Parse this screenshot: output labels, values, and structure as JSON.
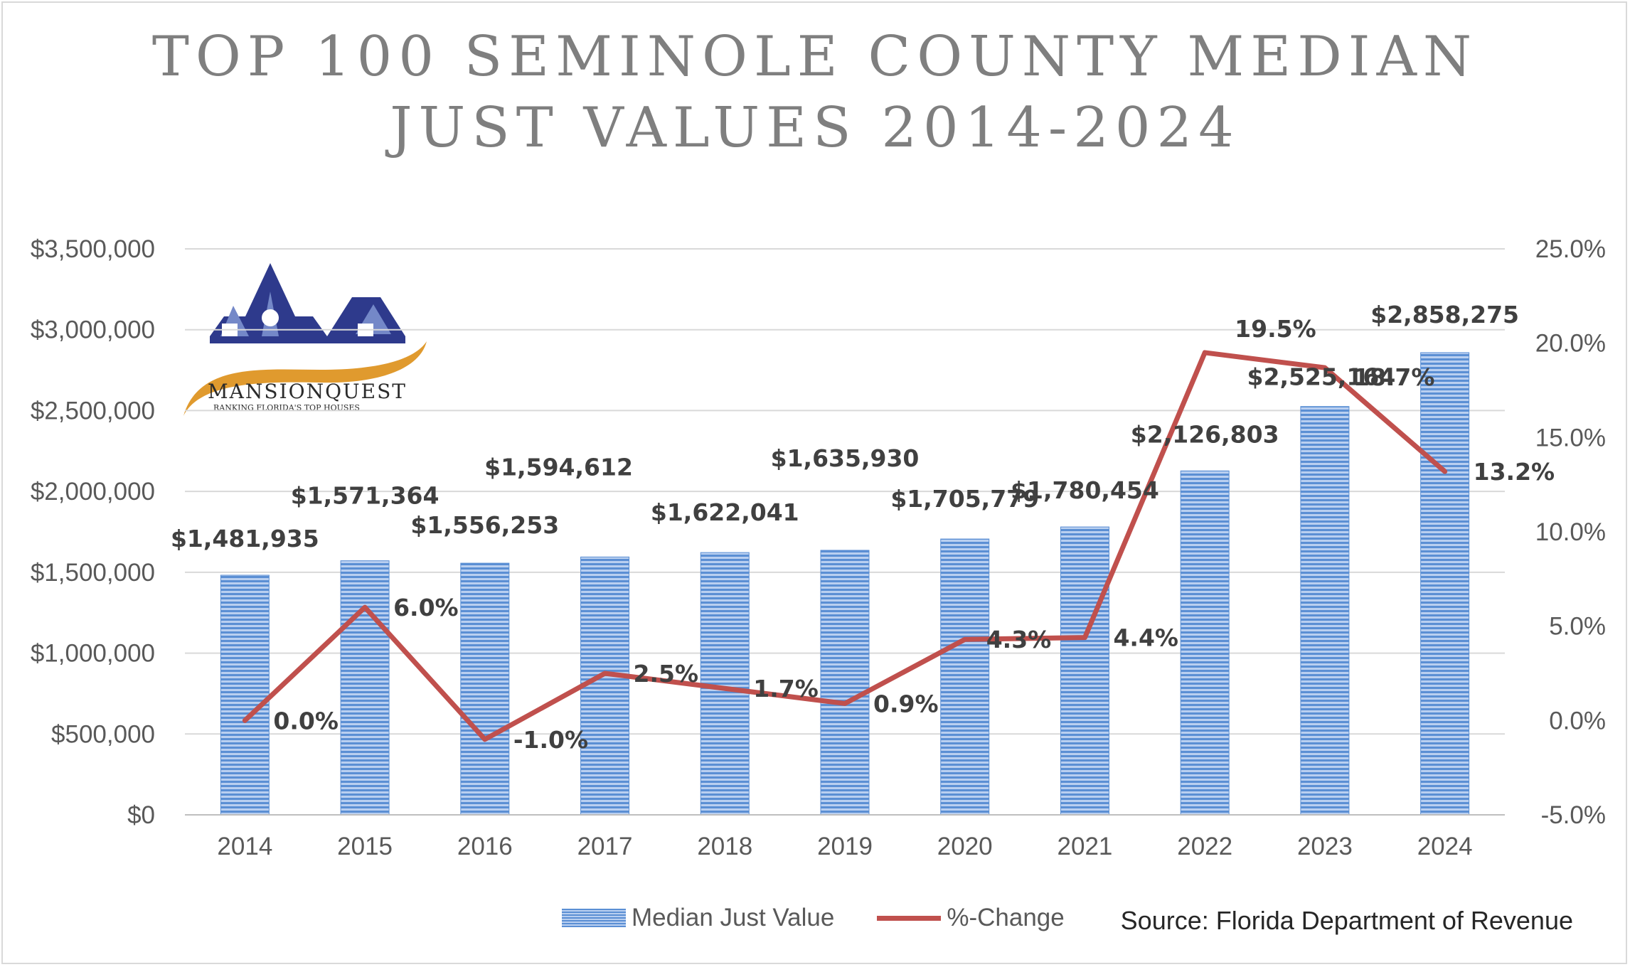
{
  "title_lines": [
    "TOP 100 SEMINOLE COUNTY MEDIAN",
    "JUST VALUES  2014-2024"
  ],
  "logo": {
    "name": "MANSIONQUEST",
    "tagline": "RANKING FLORIDA'S TOP HOUSES"
  },
  "source": "Source: Florida Department of Revenue",
  "colors": {
    "bar": "#5b8fd4",
    "bar_light": "#b9cff0",
    "line": "#c0504d",
    "grid": "#d9d9d9",
    "logo_blue": "#2e3a8c",
    "logo_orange": "#e09a2e"
  },
  "chart_data": {
    "type": "bar",
    "title": "TOP 100 SEMINOLE COUNTY MEDIAN JUST VALUES  2014-2024",
    "categories": [
      "2014",
      "2015",
      "2016",
      "2017",
      "2018",
      "2019",
      "2020",
      "2021",
      "2022",
      "2023",
      "2024"
    ],
    "series": [
      {
        "name": "Median Just Value",
        "type": "bar",
        "axis": "left",
        "values": [
          1481935,
          1571364,
          1556253,
          1594612,
          1622041,
          1635930,
          1705779,
          1780454,
          2126803,
          2525164,
          2858275
        ],
        "labels": [
          "$1,481,935",
          "$1,571,364",
          "$1,556,253",
          "$1,594,612",
          "$1,622,041",
          "$1,635,930",
          "$1,705,779",
          "$1,780,454",
          "$2,126,803",
          "$2,525,164",
          "$2,858,275"
        ]
      },
      {
        "name": "%-Change",
        "type": "line",
        "axis": "right",
        "values": [
          0.0,
          6.0,
          -1.0,
          2.5,
          1.7,
          0.9,
          4.3,
          4.4,
          19.5,
          18.7,
          13.2
        ],
        "labels": [
          "0.0%",
          "6.0%",
          "-1.0%",
          "2.5%",
          "1.7%",
          "0.9%",
          "4.3%",
          "4.4%",
          "19.5%",
          "18.7%",
          "13.2%"
        ]
      }
    ],
    "y_left": {
      "min": 0,
      "max": 3500000,
      "ticks": [
        "$0",
        "$500,000",
        "$1,000,000",
        "$1,500,000",
        "$2,000,000",
        "$2,500,000",
        "$3,000,000",
        "$3,500,000"
      ]
    },
    "y_right": {
      "min": -5,
      "max": 25,
      "ticks": [
        "-5.0%",
        "0.0%",
        "5.0%",
        "10.0%",
        "15.0%",
        "20.0%",
        "25.0%"
      ]
    },
    "grid": true,
    "legend_position": "bottom"
  }
}
